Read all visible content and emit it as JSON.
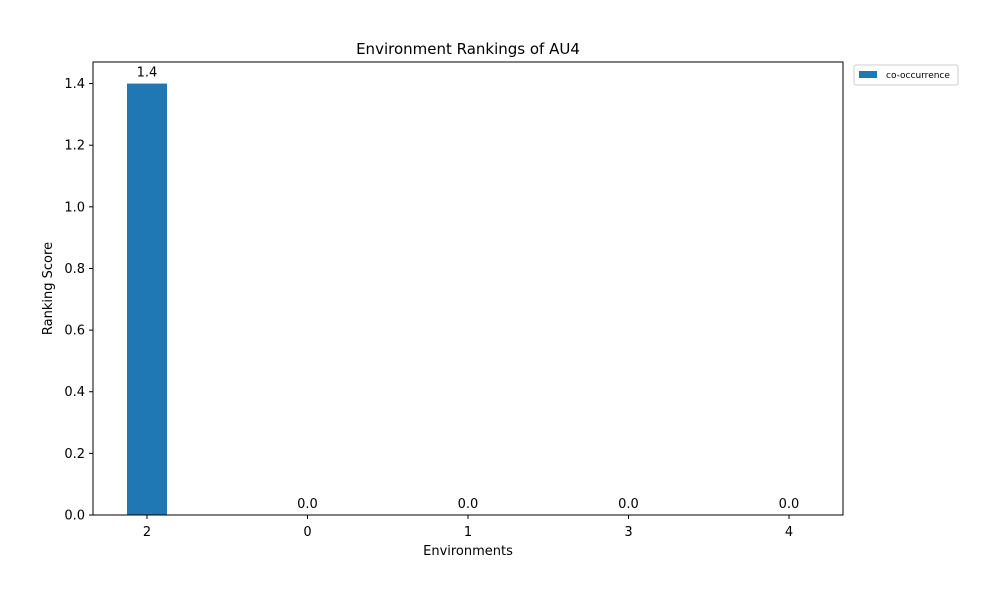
{
  "chart_data": {
    "type": "bar",
    "title": "Environment Rankings of AU4",
    "xlabel": "Environments",
    "ylabel": "Ranking Score",
    "categories": [
      "2",
      "0",
      "1",
      "3",
      "4"
    ],
    "series": [
      {
        "name": "co-occurrence",
        "values": [
          1.4,
          0.0,
          0.0,
          0.0,
          0.0
        ],
        "labels": [
          "1.4",
          "0.0",
          "0.0",
          "0.0",
          "0.0"
        ],
        "color": "#1f77b4"
      }
    ],
    "ylim": [
      0,
      1.47
    ],
    "yticks": [
      0.0,
      0.2,
      0.4,
      0.6,
      0.8,
      1.0,
      1.2,
      1.4
    ],
    "ytick_labels": [
      "0.0",
      "0.2",
      "0.4",
      "0.6",
      "0.8",
      "1.0",
      "1.2",
      "1.4"
    ],
    "grid": false,
    "legend": "outside-upper-right"
  }
}
